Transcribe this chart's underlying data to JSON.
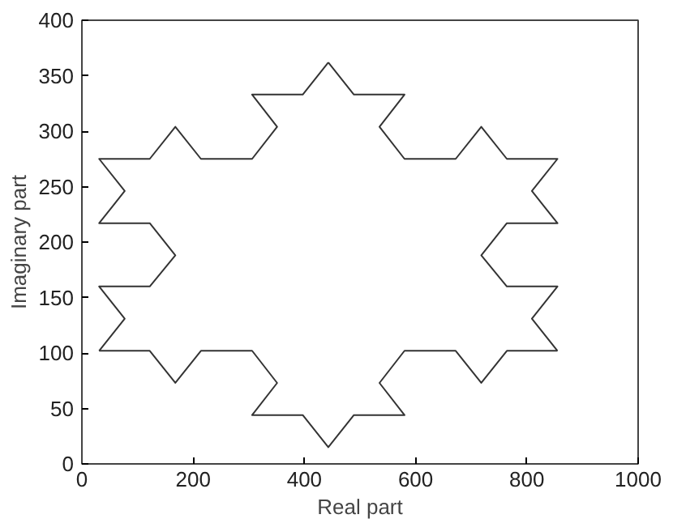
{
  "chart_data": {
    "type": "line",
    "xlabel": "Real part",
    "ylabel": "Imaginary part",
    "xlim": [
      0,
      1000
    ],
    "xticks": [
      0,
      200,
      400,
      600,
      800,
      1000
    ],
    "ylim": [
      0,
      400
    ],
    "yticks": [
      0,
      50,
      100,
      150,
      200,
      250,
      300,
      350,
      400
    ],
    "grid": false,
    "marker": "none",
    "line_style": "solid",
    "series": [
      {
        "color": "#333333",
        "x": [
          443,
          489,
          580,
          535,
          580,
          672,
          718,
          764,
          855,
          809,
          855,
          764,
          718,
          764,
          855,
          809,
          855
        ],
        "values": [
          362,
          333,
          333,
          304,
          275,
          275,
          304,
          275,
          275,
          246,
          217,
          217,
          188,
          160,
          160,
          131,
          102
        ]
      },
      {
        "color": "#333333",
        "x": [
          855,
          764,
          718,
          672,
          580,
          535,
          580,
          489,
          443,
          397,
          306,
          351,
          306,
          214,
          168,
          122,
          31
        ],
        "values": [
          102,
          102,
          73,
          102,
          102,
          73,
          44,
          44,
          15,
          44,
          44,
          73,
          102,
          102,
          73,
          102,
          102
        ]
      },
      {
        "color": "#333333",
        "x": [
          31,
          77,
          31,
          122,
          168,
          122,
          31,
          77,
          31,
          122,
          168,
          214,
          306,
          351,
          306,
          397,
          443
        ],
        "values": [
          102,
          131,
          160,
          160,
          188,
          217,
          217,
          246,
          275,
          275,
          304,
          275,
          275,
          304,
          333,
          333,
          362
        ]
      }
    ]
  }
}
